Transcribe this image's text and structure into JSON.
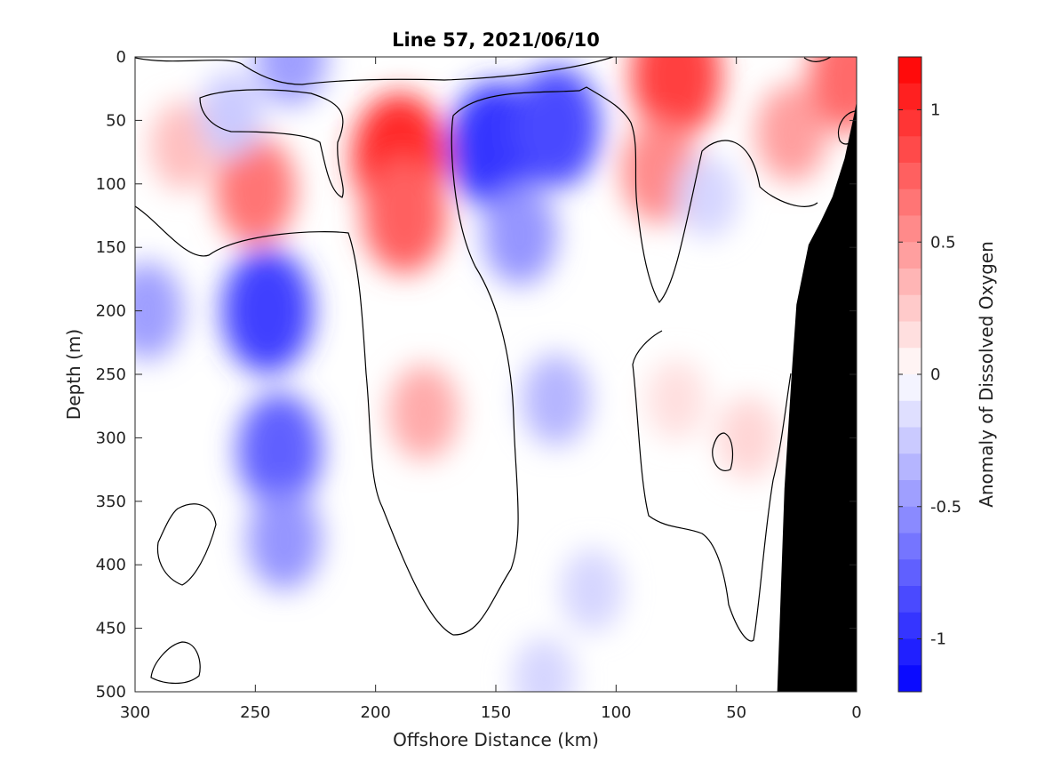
{
  "chart_data": {
    "type": "heatmap",
    "title": "Line 57, 2021/06/10",
    "xlabel": "Offshore Distance (km)",
    "ylabel": "Depth (m)",
    "colorbar_label": "Anomaly of Dissolved Oxygen",
    "xlim": [
      300,
      0
    ],
    "ylim": [
      0,
      500
    ],
    "y_reversed": true,
    "x_ticks": [
      "300",
      "250",
      "200",
      "150",
      "100",
      "50",
      "0"
    ],
    "y_ticks": [
      "0",
      "50",
      "100",
      "150",
      "200",
      "250",
      "300",
      "350",
      "400",
      "450",
      "500"
    ],
    "colorbar_range": [
      -1.2,
      1.2
    ],
    "colorbar_ticks": [
      "1",
      "0.5",
      "0",
      "-0.5",
      "-1"
    ],
    "colormap": {
      "negative": "#0000ff",
      "zero": "#ffffff",
      "positive": "#ff0000"
    },
    "contour_levels": 24,
    "zero_contour": true,
    "seafloor_color": "#000000",
    "anomaly_features": [
      {
        "sign": "positive",
        "x_km": 190,
        "depth_m": 80,
        "value": 1.0
      },
      {
        "sign": "positive",
        "x_km": 188,
        "depth_m": 125,
        "value": 0.75
      },
      {
        "sign": "positive",
        "x_km": 250,
        "depth_m": 105,
        "value": 0.65
      },
      {
        "sign": "positive",
        "x_km": 280,
        "depth_m": 70,
        "value": 0.3
      },
      {
        "sign": "positive",
        "x_km": 75,
        "depth_m": 15,
        "value": 0.9
      },
      {
        "sign": "positive",
        "x_km": 82,
        "depth_m": 90,
        "value": 0.55
      },
      {
        "sign": "positive",
        "x_km": 27,
        "depth_m": 60,
        "value": 0.45
      },
      {
        "sign": "positive",
        "x_km": 3,
        "depth_m": 15,
        "value": 0.7
      },
      {
        "sign": "positive",
        "x_km": 180,
        "depth_m": 280,
        "value": 0.4
      },
      {
        "sign": "positive",
        "x_km": 45,
        "depth_m": 300,
        "value": 0.2
      },
      {
        "sign": "positive",
        "x_km": 75,
        "depth_m": 270,
        "value": 0.15
      },
      {
        "sign": "negative",
        "x_km": 150,
        "depth_m": 70,
        "value": -0.95
      },
      {
        "sign": "negative",
        "x_km": 125,
        "depth_m": 55,
        "value": -0.85
      },
      {
        "sign": "negative",
        "x_km": 140,
        "depth_m": 140,
        "value": -0.5
      },
      {
        "sign": "negative",
        "x_km": 245,
        "depth_m": 200,
        "value": -0.9
      },
      {
        "sign": "negative",
        "x_km": 240,
        "depth_m": 310,
        "value": -0.75
      },
      {
        "sign": "negative",
        "x_km": 238,
        "depth_m": 380,
        "value": -0.5
      },
      {
        "sign": "negative",
        "x_km": 295,
        "depth_m": 200,
        "value": -0.45
      },
      {
        "sign": "negative",
        "x_km": 235,
        "depth_m": 0,
        "value": -0.45
      },
      {
        "sign": "negative",
        "x_km": 260,
        "depth_m": 45,
        "value": -0.25
      },
      {
        "sign": "negative",
        "x_km": 125,
        "depth_m": 270,
        "value": -0.35
      },
      {
        "sign": "negative",
        "x_km": 110,
        "depth_m": 420,
        "value": -0.2
      },
      {
        "sign": "negative",
        "x_km": 62,
        "depth_m": 110,
        "value": -0.2
      },
      {
        "sign": "negative",
        "x_km": 130,
        "depth_m": 490,
        "value": -0.2
      }
    ],
    "seafloor_profile": [
      {
        "x_km": 0,
        "depth_m": 35
      },
      {
        "x_km": 1,
        "depth_m": 45
      },
      {
        "x_km": 5,
        "depth_m": 80
      },
      {
        "x_km": 10,
        "depth_m": 110
      },
      {
        "x_km": 15,
        "depth_m": 130
      },
      {
        "x_km": 20,
        "depth_m": 148
      },
      {
        "x_km": 25,
        "depth_m": 195
      },
      {
        "x_km": 27,
        "depth_m": 250
      },
      {
        "x_km": 30,
        "depth_m": 340
      },
      {
        "x_km": 33,
        "depth_m": 500
      }
    ]
  }
}
